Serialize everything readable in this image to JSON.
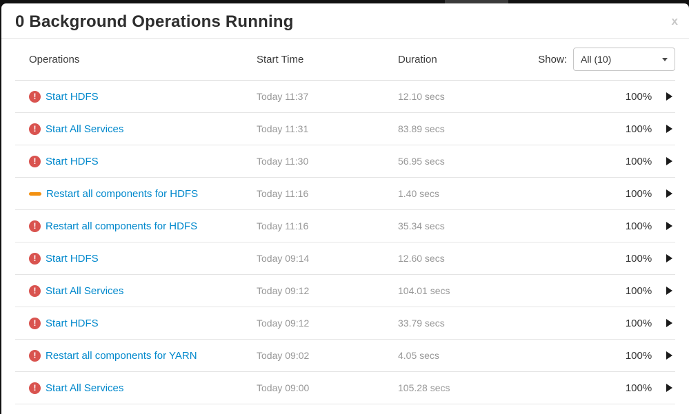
{
  "modal": {
    "title": "0 Background Operations Running",
    "close_label": "x"
  },
  "table": {
    "columns": [
      "Operations",
      "Start Time",
      "Duration"
    ],
    "show_label": "Show:",
    "show_selected": "All (10)"
  },
  "rows": [
    {
      "name": "Start HDFS",
      "start_time": "Today 11:37",
      "duration": "12.10 secs",
      "percent": "100%",
      "status": "failed"
    },
    {
      "name": "Start All Services",
      "start_time": "Today 11:31",
      "duration": "83.89 secs",
      "percent": "100%",
      "status": "failed"
    },
    {
      "name": "Start HDFS",
      "start_time": "Today 11:30",
      "duration": "56.95 secs",
      "percent": "100%",
      "status": "failed"
    },
    {
      "name": "Restart all components for HDFS",
      "start_time": "Today 11:16",
      "duration": "1.40 secs",
      "percent": "100%",
      "status": "warning"
    },
    {
      "name": "Restart all components for HDFS",
      "start_time": "Today 11:16",
      "duration": "35.34 secs",
      "percent": "100%",
      "status": "failed"
    },
    {
      "name": "Start HDFS",
      "start_time": "Today 09:14",
      "duration": "12.60 secs",
      "percent": "100%",
      "status": "failed"
    },
    {
      "name": "Start All Services",
      "start_time": "Today 09:12",
      "duration": "104.01 secs",
      "percent": "100%",
      "status": "failed"
    },
    {
      "name": "Start HDFS",
      "start_time": "Today 09:12",
      "duration": "33.79 secs",
      "percent": "100%",
      "status": "failed"
    },
    {
      "name": "Restart all components for YARN",
      "start_time": "Today 09:02",
      "duration": "4.05 secs",
      "percent": "100%",
      "status": "failed"
    },
    {
      "name": "Start All Services",
      "start_time": "Today 09:00",
      "duration": "105.28 secs",
      "percent": "100%",
      "status": "failed"
    }
  ],
  "icons": {
    "failed_glyph": "!",
    "expand": "caret-right",
    "dropdown": "caret-down"
  },
  "colors": {
    "link": "#0088cc",
    "failed_icon": "#d9534f",
    "failed_bar_top": "#e2615d",
    "failed_bar_bottom": "#cb453f",
    "warning_icon": "#f39111",
    "warning_bar_top": "#fbb450",
    "warning_bar_bottom": "#f89406",
    "muted_text": "#979797"
  }
}
